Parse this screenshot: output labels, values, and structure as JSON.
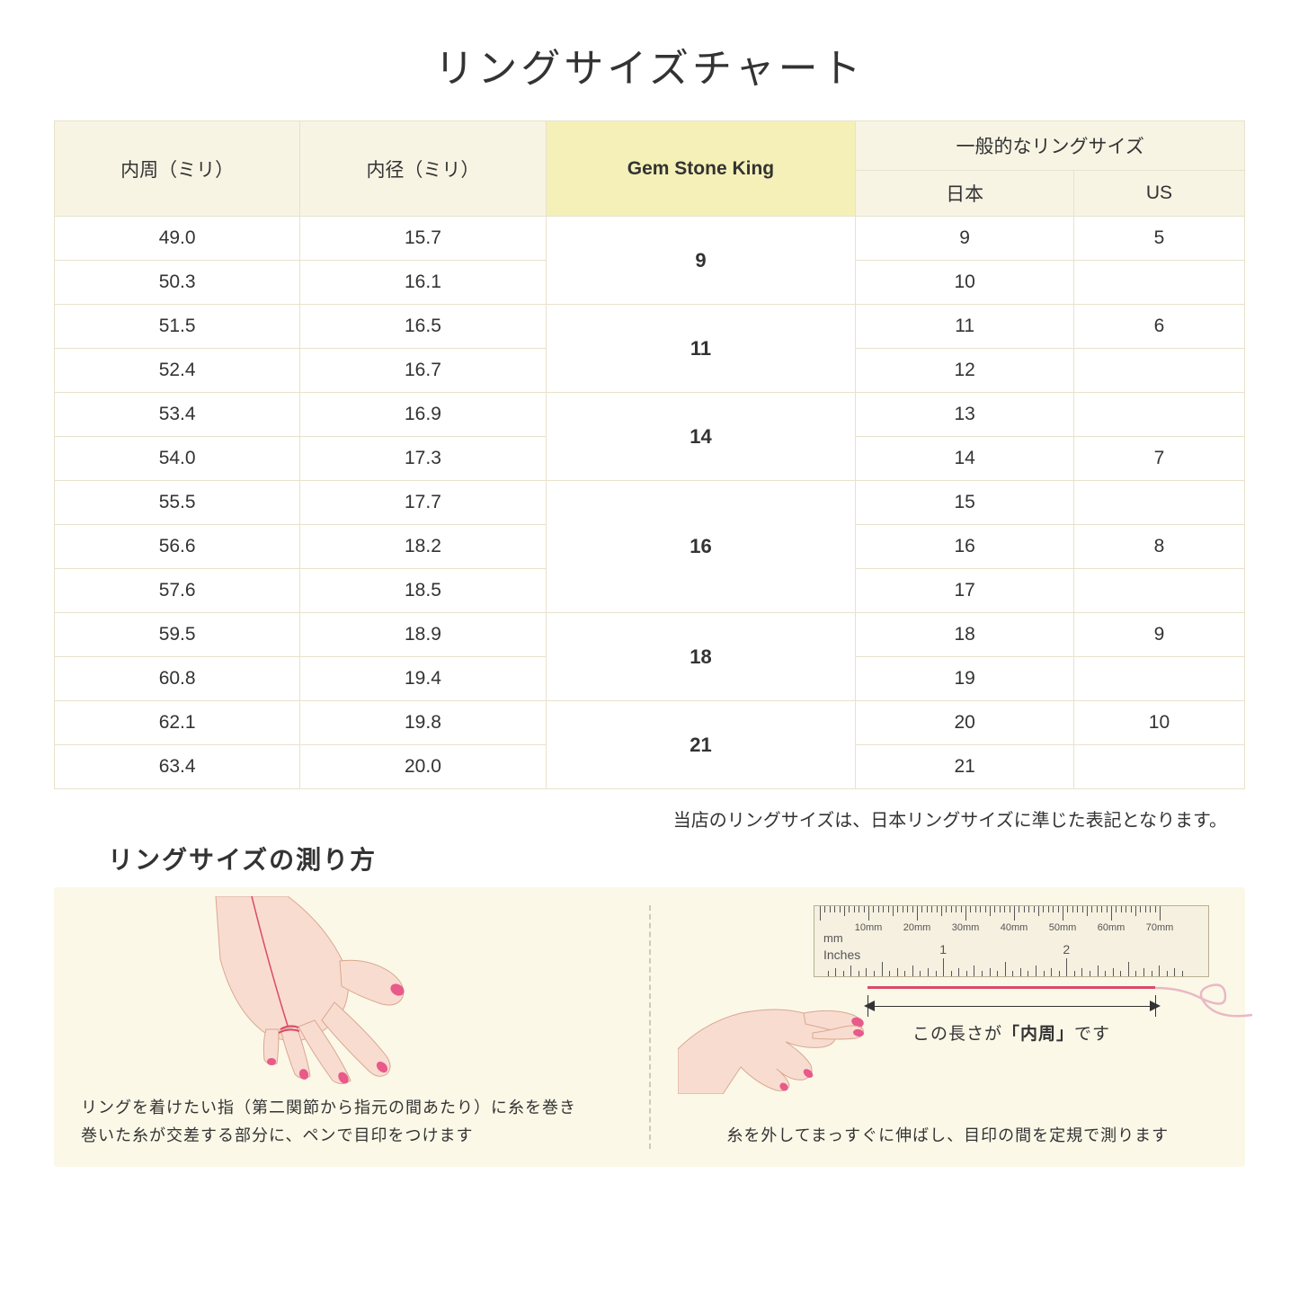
{
  "title": "リングサイズチャート",
  "headers": {
    "circumference": "内周（ミリ）",
    "diameter": "内径（ミリ）",
    "gsk": "Gem Stone King",
    "general": "一般的なリングサイズ",
    "japan": "日本",
    "us": "US"
  },
  "groups": [
    {
      "gsk": "9",
      "rows": [
        {
          "c": "49.0",
          "d": "15.7",
          "jp": "9",
          "us": "5"
        },
        {
          "c": "50.3",
          "d": "16.1",
          "jp": "10",
          "us": ""
        }
      ]
    },
    {
      "gsk": "11",
      "rows": [
        {
          "c": "51.5",
          "d": "16.5",
          "jp": "11",
          "us": "6"
        },
        {
          "c": "52.4",
          "d": "16.7",
          "jp": "12",
          "us": ""
        }
      ]
    },
    {
      "gsk": "14",
      "rows": [
        {
          "c": "53.4",
          "d": "16.9",
          "jp": "13",
          "us": ""
        },
        {
          "c": "54.0",
          "d": "17.3",
          "jp": "14",
          "us": "7"
        }
      ]
    },
    {
      "gsk": "16",
      "rows": [
        {
          "c": "55.5",
          "d": "17.7",
          "jp": "15",
          "us": ""
        },
        {
          "c": "56.6",
          "d": "18.2",
          "jp": "16",
          "us": "8"
        },
        {
          "c": "57.6",
          "d": "18.5",
          "jp": "17",
          "us": ""
        }
      ]
    },
    {
      "gsk": "18",
      "rows": [
        {
          "c": "59.5",
          "d": "18.9",
          "jp": "18",
          "us": "9"
        },
        {
          "c": "60.8",
          "d": "19.4",
          "jp": "19",
          "us": ""
        }
      ]
    },
    {
      "gsk": "21",
      "rows": [
        {
          "c": "62.1",
          "d": "19.8",
          "jp": "20",
          "us": "10"
        },
        {
          "c": "63.4",
          "d": "20.0",
          "jp": "21",
          "us": ""
        }
      ]
    }
  ],
  "note": "当店のリングサイズは、日本リングサイズに準じた表記となります。",
  "howto": {
    "title": "リングサイズの測り方",
    "left_caption": "リングを着けたい指（第二関節から指元の間あたり）に糸を巻き\n巻いた糸が交差する部分に、ペンで目印をつけます",
    "right_caption": "糸を外してまっすぐに伸ばし、目印の間を定規で測ります",
    "arrow_label_pre": "この長さが",
    "arrow_label_bold": "「内周」",
    "arrow_label_post": "です",
    "ruler": {
      "mm_label": "mm",
      "in_label": "Inches",
      "mm_marks": [
        "10mm",
        "20mm",
        "30mm",
        "40mm",
        "50mm",
        "60mm",
        "70mm"
      ],
      "in_marks": [
        "1",
        "2"
      ]
    }
  },
  "colors": {
    "header_bg": "#f7f4e4",
    "highlight_bg": "#f4f0b8",
    "border": "#e8e2cc",
    "howto_bg": "#fbf8e8",
    "hand_fill": "#f9dcd0",
    "hand_stroke": "#d8a890",
    "nail": "#e85a8a",
    "thread": "#d94a6a",
    "ruler_bg": "#f5f0e0",
    "ruler_border": "#b8b090"
  }
}
